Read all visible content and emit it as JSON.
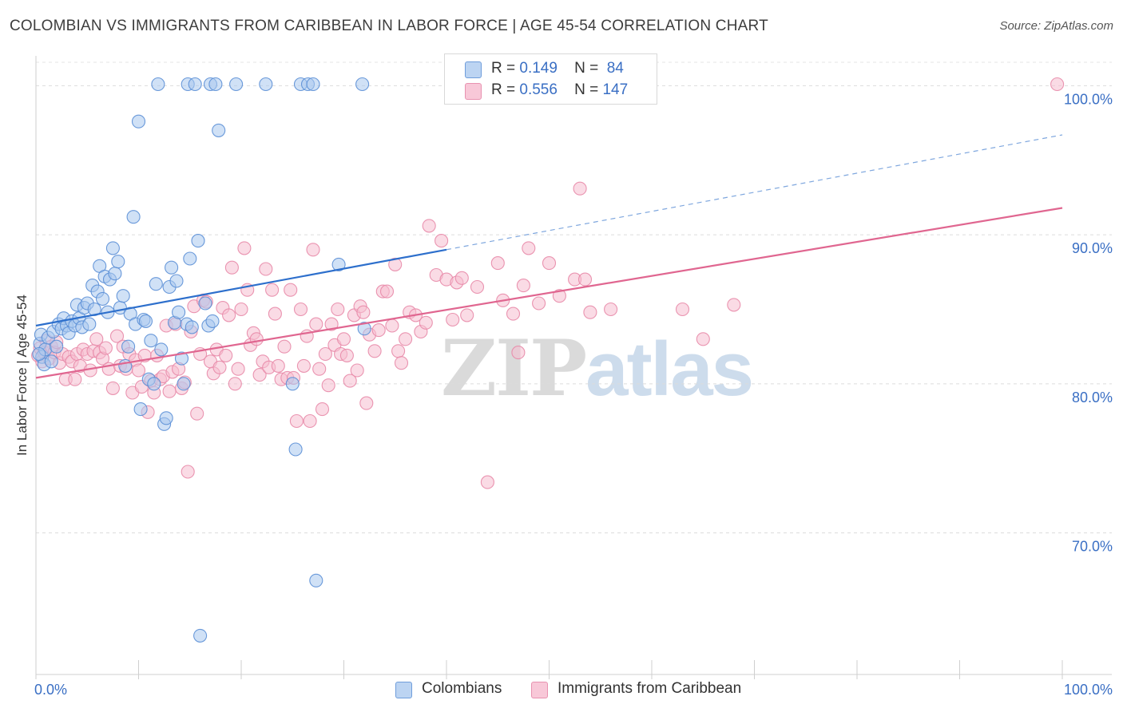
{
  "title": "COLOMBIAN VS IMMIGRANTS FROM CARIBBEAN IN LABOR FORCE | AGE 45-54 CORRELATION CHART",
  "source": "Source: ZipAtlas.com",
  "watermark": {
    "zip": "ZIP",
    "atlas": "atlas"
  },
  "colors": {
    "blue_fill": "#a9c8ef",
    "blue_stroke": "#5b8fd6",
    "blue_line": "#2d6fcc",
    "pink_fill": "#f5bdd0",
    "pink_stroke": "#e88aa8",
    "pink_line": "#e06690",
    "axis_text": "#3a6fc4"
  },
  "legend": {
    "rows": [
      {
        "r_label": "R =",
        "r_value": "0.149",
        "n_label": "N =",
        "n_value": "84"
      },
      {
        "r_label": "R =",
        "r_value": "0.556",
        "n_label": "N =",
        "n_value": "147"
      }
    ]
  },
  "bottom_legend": [
    "Colombians",
    "Immigrants from Caribbean"
  ],
  "chart_data": {
    "type": "scatter",
    "ylabel": "In Labor Force | Age 45-54",
    "xlim": [
      0,
      100
    ],
    "ylim": [
      60.5,
      102
    ],
    "x_tick_labels": [
      "0.0%",
      "100.0%"
    ],
    "y_ticks": [
      70,
      80,
      90,
      100
    ],
    "y_tick_labels": [
      "70.0%",
      "80.0%",
      "90.0%",
      "100.0%"
    ],
    "grid": "horizontal dashed",
    "legend_position": "top-center",
    "series": [
      {
        "name": "Colombians",
        "r": 0.149,
        "n": 84,
        "trend": {
          "x0": 0,
          "y0": 83.9,
          "x1": 40,
          "y1": 89.0,
          "extend_dashed_to": {
            "x": 100,
            "y": 96.7
          }
        },
        "points": [
          [
            0.4,
            82.7
          ],
          [
            0.6,
            81.8
          ],
          [
            0.8,
            81.3
          ],
          [
            0.5,
            83.3
          ],
          [
            0.9,
            82.3
          ],
          [
            1.2,
            83.1
          ],
          [
            1.5,
            81.5
          ],
          [
            1.7,
            83.5
          ],
          [
            2.0,
            82.5
          ],
          [
            2.2,
            84.0
          ],
          [
            2.5,
            83.7
          ],
          [
            2.7,
            84.4
          ],
          [
            3.0,
            83.9
          ],
          [
            3.2,
            83.4
          ],
          [
            3.5,
            84.2
          ],
          [
            3.8,
            83.9
          ],
          [
            4.0,
            85.3
          ],
          [
            4.2,
            84.4
          ],
          [
            4.5,
            83.8
          ],
          [
            4.7,
            85.1
          ],
          [
            5.0,
            85.4
          ],
          [
            5.2,
            84.0
          ],
          [
            5.5,
            86.6
          ],
          [
            5.7,
            85.0
          ],
          [
            6.0,
            86.2
          ],
          [
            6.2,
            87.9
          ],
          [
            6.5,
            85.7
          ],
          [
            6.7,
            87.2
          ],
          [
            7.0,
            84.8
          ],
          [
            7.2,
            87.0
          ],
          [
            7.5,
            89.1
          ],
          [
            7.7,
            87.4
          ],
          [
            8.0,
            88.2
          ],
          [
            8.2,
            85.1
          ],
          [
            8.5,
            85.9
          ],
          [
            8.7,
            81.2
          ],
          [
            9.0,
            82.5
          ],
          [
            9.2,
            84.7
          ],
          [
            9.5,
            91.2
          ],
          [
            9.7,
            84.0
          ],
          [
            10.0,
            97.6
          ],
          [
            10.2,
            78.3
          ],
          [
            10.5,
            84.3
          ],
          [
            10.7,
            84.2
          ],
          [
            11.0,
            80.3
          ],
          [
            11.2,
            82.9
          ],
          [
            11.5,
            80.0
          ],
          [
            11.7,
            86.7
          ],
          [
            11.9,
            100.1
          ],
          [
            12.2,
            82.3
          ],
          [
            12.5,
            77.3
          ],
          [
            12.7,
            77.7
          ],
          [
            13.0,
            86.5
          ],
          [
            13.2,
            87.8
          ],
          [
            13.5,
            84.1
          ],
          [
            13.7,
            86.9
          ],
          [
            13.9,
            84.8
          ],
          [
            14.2,
            81.7
          ],
          [
            14.4,
            80.0
          ],
          [
            14.7,
            84.0
          ],
          [
            15.0,
            88.4
          ],
          [
            15.2,
            83.8
          ],
          [
            14.8,
            100.1
          ],
          [
            15.5,
            100.1
          ],
          [
            15.8,
            89.6
          ],
          [
            16.0,
            63.1
          ],
          [
            16.5,
            85.4
          ],
          [
            16.8,
            83.9
          ],
          [
            17.2,
            84.2
          ],
          [
            17.0,
            100.1
          ],
          [
            17.5,
            100.1
          ],
          [
            17.8,
            97.0
          ],
          [
            19.5,
            100.1
          ],
          [
            22.4,
            100.1
          ],
          [
            25.0,
            80.0
          ],
          [
            25.3,
            75.6
          ],
          [
            25.8,
            100.1
          ],
          [
            26.5,
            100.1
          ],
          [
            27.0,
            100.1
          ],
          [
            27.3,
            66.8
          ],
          [
            29.5,
            88.0
          ],
          [
            32.0,
            83.7
          ],
          [
            31.8,
            100.1
          ],
          [
            0.3,
            82.0
          ]
        ]
      },
      {
        "name": "Immigrants from Caribbean",
        "r": 0.556,
        "n": 147,
        "trend": {
          "x0": 0,
          "y0": 80.4,
          "x1": 100,
          "y1": 91.8
        },
        "points": [
          [
            0.2,
            81.9
          ],
          [
            0.4,
            82.4
          ],
          [
            0.6,
            81.5
          ],
          [
            0.8,
            82.1
          ],
          [
            1.0,
            82.9
          ],
          [
            1.3,
            81.7
          ],
          [
            1.5,
            82.5
          ],
          [
            1.8,
            82.1
          ],
          [
            2.0,
            82.8
          ],
          [
            2.3,
            81.4
          ],
          [
            2.6,
            82.0
          ],
          [
            2.9,
            80.3
          ],
          [
            3.2,
            81.8
          ],
          [
            3.5,
            81.5
          ],
          [
            3.8,
            80.3
          ],
          [
            4.0,
            82.0
          ],
          [
            4.3,
            81.2
          ],
          [
            4.6,
            82.3
          ],
          [
            5.0,
            82.0
          ],
          [
            5.3,
            80.9
          ],
          [
            5.6,
            82.2
          ],
          [
            5.9,
            83.0
          ],
          [
            6.2,
            82.1
          ],
          [
            6.5,
            81.7
          ],
          [
            6.8,
            82.4
          ],
          [
            7.1,
            81.0
          ],
          [
            7.5,
            79.7
          ],
          [
            7.9,
            83.2
          ],
          [
            8.2,
            81.2
          ],
          [
            8.5,
            82.5
          ],
          [
            8.8,
            81.0
          ],
          [
            9.1,
            82.0
          ],
          [
            9.4,
            79.4
          ],
          [
            9.7,
            81.6
          ],
          [
            10.0,
            80.9
          ],
          [
            10.3,
            79.8
          ],
          [
            10.6,
            81.9
          ],
          [
            10.9,
            78.1
          ],
          [
            11.2,
            80.2
          ],
          [
            11.5,
            79.4
          ],
          [
            11.8,
            81.9
          ],
          [
            12.1,
            80.3
          ],
          [
            12.4,
            80.5
          ],
          [
            12.7,
            83.9
          ],
          [
            13.0,
            79.5
          ],
          [
            13.3,
            80.8
          ],
          [
            13.6,
            84.0
          ],
          [
            13.9,
            81.0
          ],
          [
            14.2,
            79.7
          ],
          [
            14.5,
            80.1
          ],
          [
            14.8,
            74.1
          ],
          [
            15.1,
            83.5
          ],
          [
            15.4,
            85.2
          ],
          [
            15.7,
            78.0
          ],
          [
            16.0,
            82.0
          ],
          [
            16.3,
            85.6
          ],
          [
            16.6,
            85.5
          ],
          [
            17.0,
            81.5
          ],
          [
            17.3,
            80.7
          ],
          [
            17.6,
            82.3
          ],
          [
            17.9,
            81.1
          ],
          [
            18.2,
            85.1
          ],
          [
            18.5,
            81.9
          ],
          [
            18.8,
            84.6
          ],
          [
            19.1,
            87.8
          ],
          [
            19.4,
            80.0
          ],
          [
            19.7,
            81.0
          ],
          [
            20.0,
            85.0
          ],
          [
            20.3,
            89.1
          ],
          [
            20.6,
            86.3
          ],
          [
            20.9,
            82.6
          ],
          [
            21.2,
            83.4
          ],
          [
            21.5,
            83.0
          ],
          [
            21.8,
            80.6
          ],
          [
            22.1,
            81.5
          ],
          [
            22.4,
            87.7
          ],
          [
            22.7,
            81.1
          ],
          [
            23.0,
            86.3
          ],
          [
            23.3,
            84.7
          ],
          [
            23.6,
            81.2
          ],
          [
            23.9,
            80.3
          ],
          [
            24.2,
            82.5
          ],
          [
            24.5,
            80.4
          ],
          [
            24.8,
            86.3
          ],
          [
            25.1,
            80.4
          ],
          [
            25.4,
            77.5
          ],
          [
            25.8,
            85.0
          ],
          [
            26.1,
            81.2
          ],
          [
            26.4,
            83.2
          ],
          [
            26.7,
            77.5
          ],
          [
            27.0,
            89.0
          ],
          [
            27.3,
            84.0
          ],
          [
            27.6,
            81.0
          ],
          [
            27.9,
            78.3
          ],
          [
            28.2,
            82.0
          ],
          [
            28.5,
            79.9
          ],
          [
            28.8,
            84.0
          ],
          [
            29.1,
            82.6
          ],
          [
            29.4,
            85.0
          ],
          [
            29.7,
            82.0
          ],
          [
            30.0,
            83.0
          ],
          [
            30.3,
            81.9
          ],
          [
            30.6,
            80.2
          ],
          [
            31.0,
            84.6
          ],
          [
            31.3,
            80.9
          ],
          [
            31.6,
            85.2
          ],
          [
            31.9,
            84.8
          ],
          [
            32.2,
            78.7
          ],
          [
            32.5,
            83.3
          ],
          [
            33.0,
            82.2
          ],
          [
            33.4,
            83.6
          ],
          [
            33.8,
            86.2
          ],
          [
            34.2,
            86.2
          ],
          [
            34.7,
            83.9
          ],
          [
            35.0,
            88.0
          ],
          [
            35.3,
            82.2
          ],
          [
            35.6,
            81.4
          ],
          [
            36.0,
            83.0
          ],
          [
            36.4,
            84.8
          ],
          [
            37.0,
            84.6
          ],
          [
            37.5,
            83.5
          ],
          [
            38.0,
            84.1
          ],
          [
            38.3,
            90.6
          ],
          [
            39.0,
            87.3
          ],
          [
            39.5,
            89.6
          ],
          [
            40.0,
            87.0
          ],
          [
            40.6,
            84.3
          ],
          [
            41.0,
            86.8
          ],
          [
            41.5,
            87.1
          ],
          [
            42.0,
            84.6
          ],
          [
            43.0,
            86.5
          ],
          [
            44.0,
            73.4
          ],
          [
            45.0,
            88.1
          ],
          [
            45.5,
            85.6
          ],
          [
            46.5,
            84.7
          ],
          [
            47.0,
            82.1
          ],
          [
            47.5,
            86.6
          ],
          [
            48.0,
            89.1
          ],
          [
            49.0,
            85.4
          ],
          [
            50.0,
            88.1
          ],
          [
            51.0,
            85.9
          ],
          [
            52.5,
            87.0
          ],
          [
            53.0,
            93.1
          ],
          [
            53.5,
            87.0
          ],
          [
            54.0,
            84.8
          ],
          [
            56.0,
            85.0
          ],
          [
            63.0,
            85.0
          ],
          [
            65.0,
            83.0
          ],
          [
            68.0,
            85.3
          ],
          [
            99.5,
            100.1
          ]
        ]
      }
    ]
  }
}
